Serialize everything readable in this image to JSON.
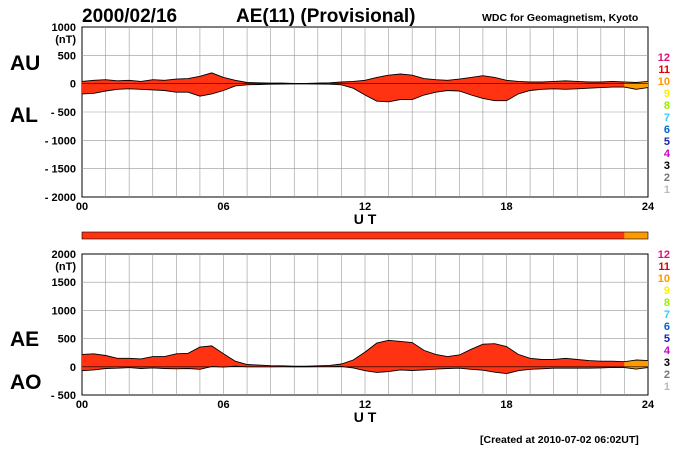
{
  "header": {
    "date": "2000/02/16",
    "title": "AE(11) (Provisional)",
    "source": "WDC for Geomagnetism, Kyoto"
  },
  "footer": {
    "created": "[Created at 2010-07-02 06:02UT]"
  },
  "legend": {
    "stations": [
      {
        "n": "12",
        "color": "#e0107a"
      },
      {
        "n": "11",
        "color": "#e00000"
      },
      {
        "n": "10",
        "color": "#ff9900"
      },
      {
        "n": "9",
        "color": "#ffee00"
      },
      {
        "n": "8",
        "color": "#99ee00"
      },
      {
        "n": "7",
        "color": "#33ccff"
      },
      {
        "n": "6",
        "color": "#0066cc"
      },
      {
        "n": "5",
        "color": "#2222aa"
      },
      {
        "n": "4",
        "color": "#cc00cc"
      },
      {
        "n": "3",
        "color": "#000000"
      },
      {
        "n": "2",
        "color": "#777777"
      },
      {
        "n": "1",
        "color": "#bbbbbb"
      }
    ]
  },
  "colors": {
    "fill_11_stations": "#ff3311",
    "fill_10_stations": "#ff9900",
    "outline": "#000000",
    "grid": "#999999"
  },
  "station_bar": [
    {
      "from": 0,
      "to": 23.0,
      "stations": 11
    },
    {
      "from": 23.0,
      "to": 24,
      "stations": 10
    }
  ],
  "chart_data": [
    {
      "type": "area",
      "panel": "AU/AL",
      "labels": [
        "AU",
        "AL"
      ],
      "ylabel": "(nT)",
      "ylim": [
        -2000,
        1000
      ],
      "yticks": [
        "1000",
        "500",
        "0",
        "- 500",
        "- 1000",
        "- 1500",
        "- 2000"
      ],
      "xlabel": "U T",
      "xlim": [
        0,
        24
      ],
      "xticks": [
        "00",
        "06",
        "12",
        "18",
        "24"
      ],
      "x": [
        0,
        0.5,
        1,
        1.5,
        2,
        2.5,
        3,
        3.5,
        4,
        4.5,
        5,
        5.5,
        6,
        6.5,
        7,
        7.5,
        8,
        8.5,
        9,
        9.5,
        10,
        10.5,
        11,
        11.5,
        12,
        12.5,
        13,
        13.5,
        14,
        14.5,
        15,
        15.5,
        16,
        16.5,
        17,
        17.5,
        18,
        18.5,
        19,
        19.5,
        20,
        20.5,
        21,
        21.5,
        22,
        22.5,
        23,
        23.5,
        24
      ],
      "series": [
        {
          "name": "AU",
          "values": [
            40,
            60,
            70,
            50,
            60,
            40,
            70,
            60,
            80,
            90,
            130,
            190,
            110,
            60,
            20,
            15,
            10,
            10,
            5,
            5,
            10,
            15,
            30,
            40,
            60,
            110,
            150,
            170,
            150,
            90,
            70,
            60,
            80,
            110,
            140,
            110,
            60,
            40,
            30,
            30,
            40,
            50,
            40,
            30,
            30,
            40,
            30,
            20,
            40
          ]
        },
        {
          "name": "AL",
          "values": [
            -180,
            -170,
            -130,
            -100,
            -90,
            -100,
            -110,
            -120,
            -150,
            -150,
            -220,
            -180,
            -120,
            -40,
            -20,
            -15,
            -10,
            -8,
            -5,
            -5,
            -8,
            -10,
            -20,
            -80,
            -200,
            -310,
            -320,
            -280,
            -280,
            -200,
            -150,
            -120,
            -130,
            -200,
            -260,
            -300,
            -300,
            -180,
            -120,
            -100,
            -90,
            -100,
            -90,
            -80,
            -70,
            -60,
            -60,
            -100,
            -70
          ]
        }
      ]
    },
    {
      "type": "area",
      "panel": "AE/AO",
      "labels": [
        "AE",
        "AO"
      ],
      "ylabel": "(nT)",
      "ylim": [
        -500,
        2000
      ],
      "yticks": [
        "2000",
        "1500",
        "1000",
        "500",
        "0",
        "- 500"
      ],
      "xlabel": "U T",
      "xlim": [
        0,
        24
      ],
      "xticks": [
        "00",
        "06",
        "12",
        "18",
        "24"
      ],
      "x": [
        0,
        0.5,
        1,
        1.5,
        2,
        2.5,
        3,
        3.5,
        4,
        4.5,
        5,
        5.5,
        6,
        6.5,
        7,
        7.5,
        8,
        8.5,
        9,
        9.5,
        10,
        10.5,
        11,
        11.5,
        12,
        12.5,
        13,
        13.5,
        14,
        14.5,
        15,
        15.5,
        16,
        16.5,
        17,
        17.5,
        18,
        18.5,
        19,
        19.5,
        20,
        20.5,
        21,
        21.5,
        22,
        22.5,
        23,
        23.5,
        24
      ],
      "series": [
        {
          "name": "AE",
          "values": [
            220,
            230,
            200,
            150,
            150,
            140,
            180,
            180,
            230,
            240,
            350,
            370,
            230,
            100,
            40,
            30,
            20,
            18,
            10,
            10,
            18,
            25,
            50,
            120,
            260,
            420,
            470,
            450,
            430,
            290,
            220,
            180,
            210,
            310,
            400,
            410,
            360,
            220,
            150,
            130,
            130,
            150,
            130,
            110,
            100,
            100,
            90,
            120,
            110
          ]
        },
        {
          "name": "AO",
          "values": [
            -70,
            -55,
            -30,
            -25,
            -15,
            -30,
            -20,
            -30,
            -35,
            -30,
            -45,
            5,
            -5,
            10,
            0,
            0,
            0,
            1,
            0,
            0,
            1,
            2,
            5,
            -20,
            -70,
            -100,
            -85,
            -55,
            -65,
            -55,
            -40,
            -30,
            -25,
            -45,
            -60,
            -95,
            -120,
            -70,
            -45,
            -35,
            -25,
            -25,
            -25,
            -25,
            -20,
            -10,
            -15,
            -40,
            -15
          ]
        }
      ]
    }
  ]
}
